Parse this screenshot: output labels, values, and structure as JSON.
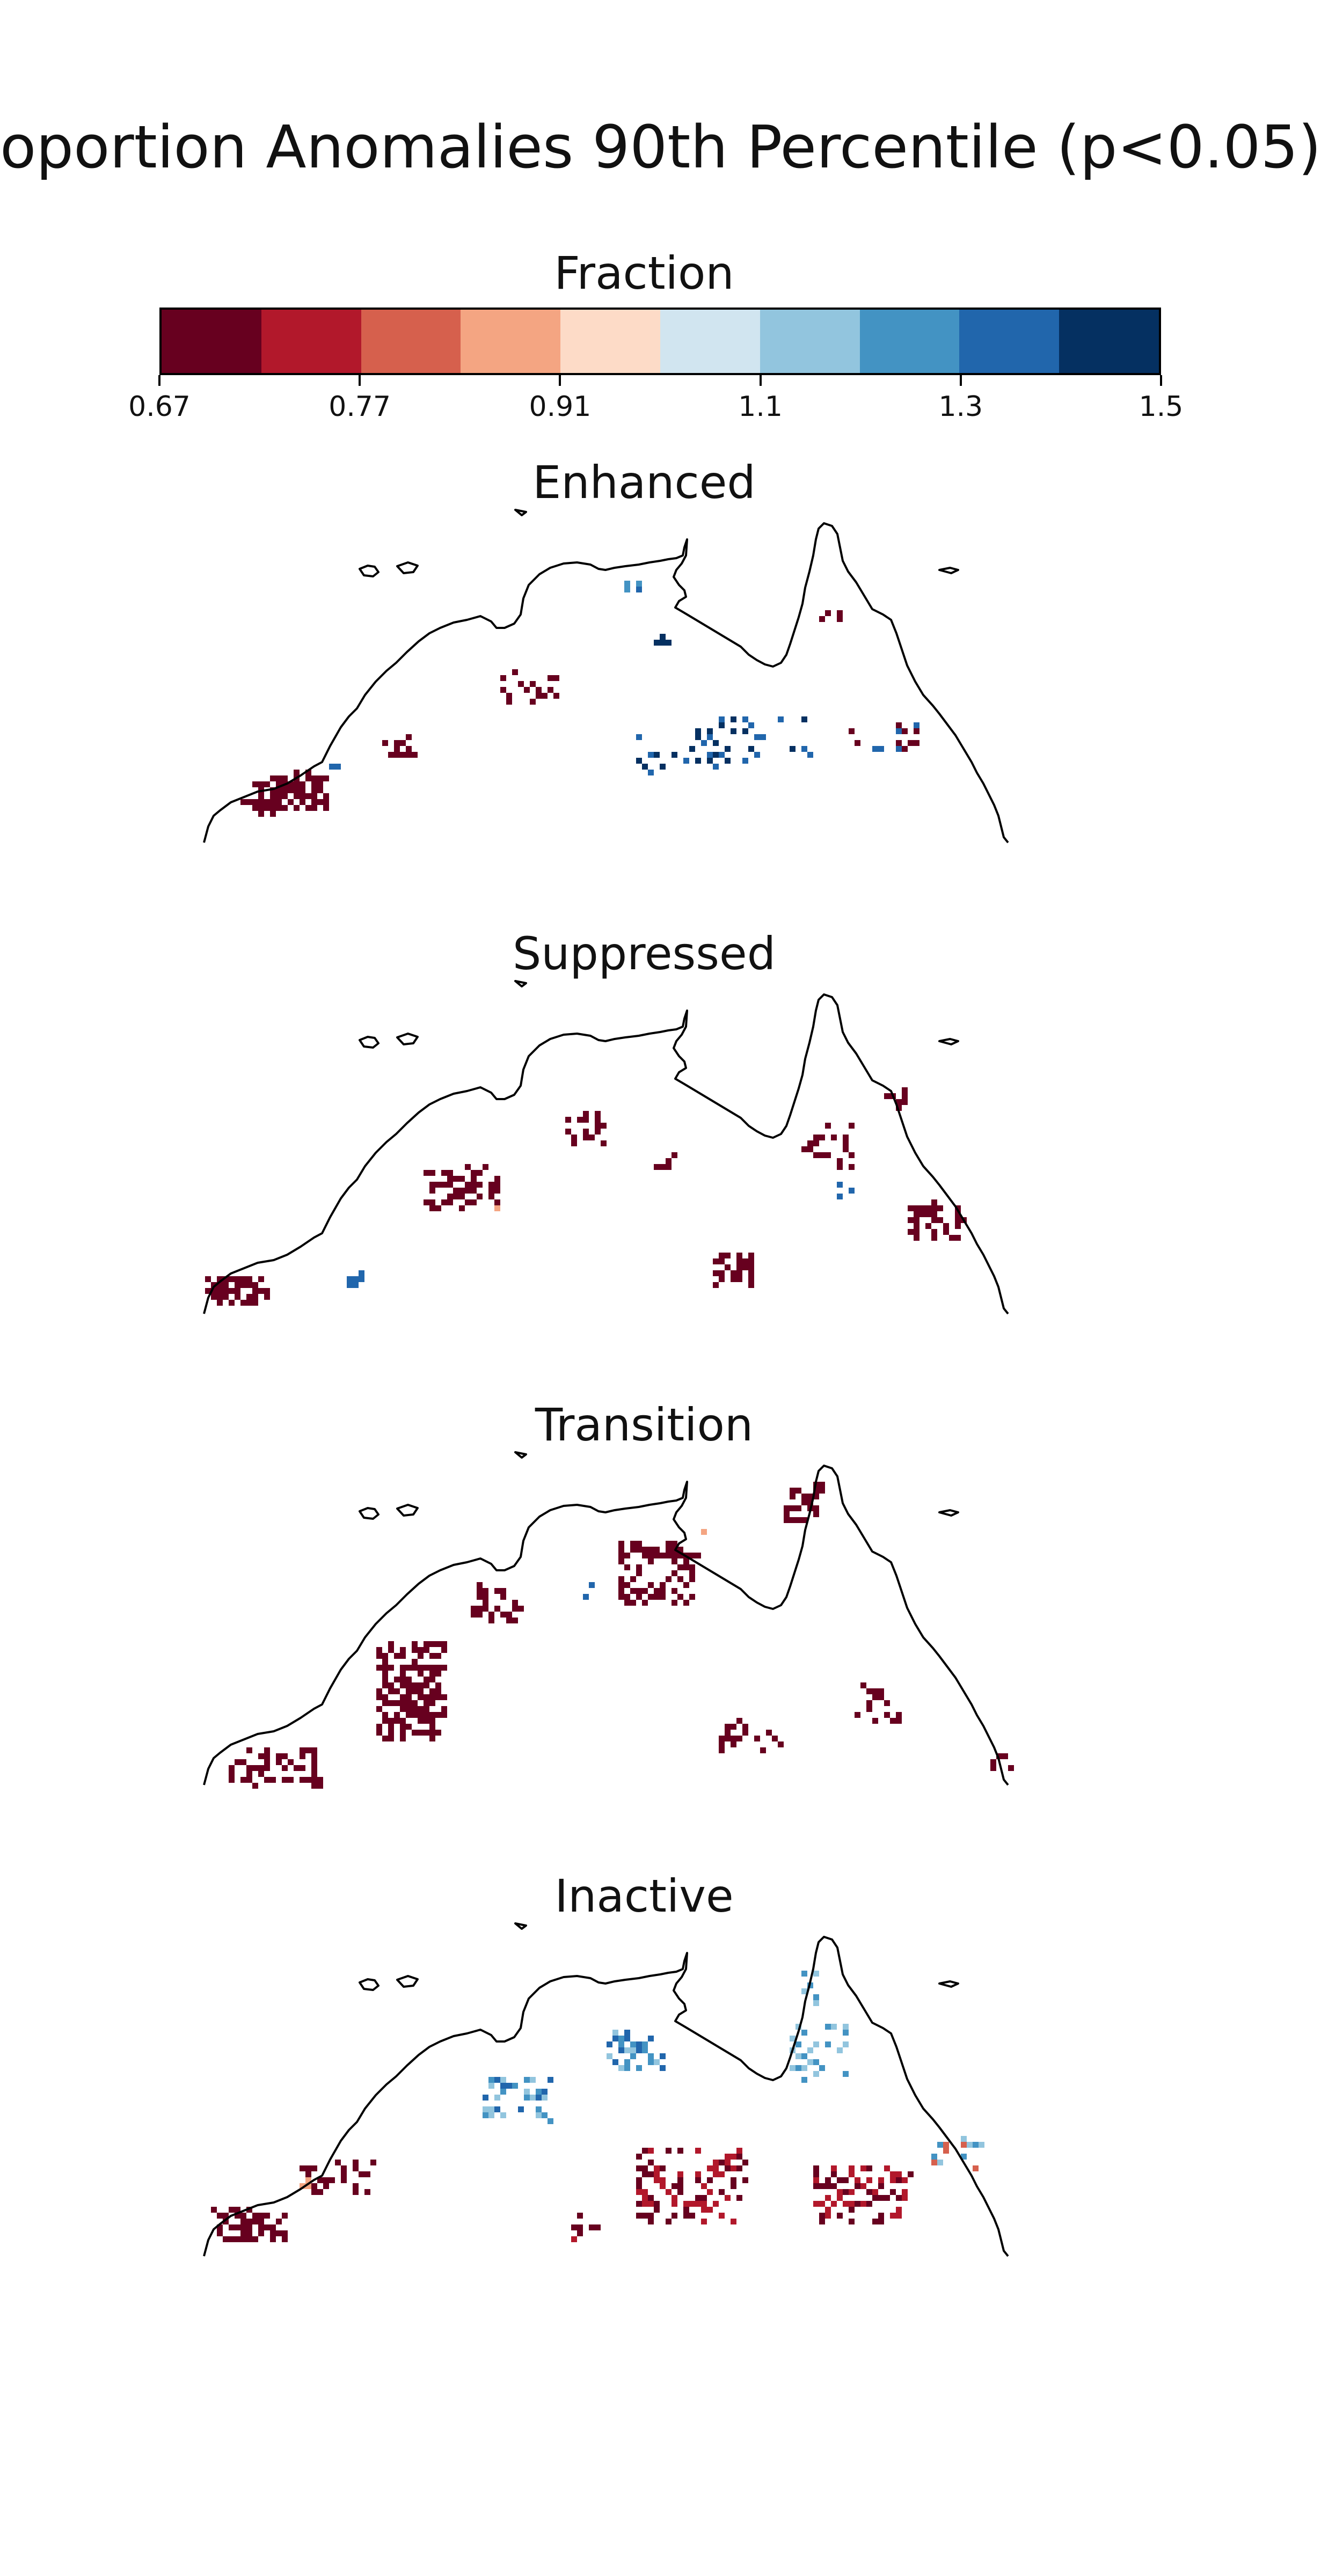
{
  "figure": {
    "title": "oportion Anomalies 90th Percentile (p<0.05)"
  },
  "colorbar": {
    "label": "Fraction",
    "colors": [
      "#67001f",
      "#b2182b",
      "#d6604d",
      "#f4a582",
      "#fddbc7",
      "#d1e5f0",
      "#92c5de",
      "#4393c3",
      "#2166ac",
      "#053061"
    ],
    "tick_labels": [
      "0.67",
      "0.77",
      "0.91",
      "1.1",
      "1.3",
      "1.5"
    ]
  },
  "panels": [
    {
      "title": "Enhanced"
    },
    {
      "title": "Suppressed"
    },
    {
      "title": "Transition"
    },
    {
      "title": "Inactive"
    }
  ],
  "map": {
    "coastline_color": "#000000"
  }
}
